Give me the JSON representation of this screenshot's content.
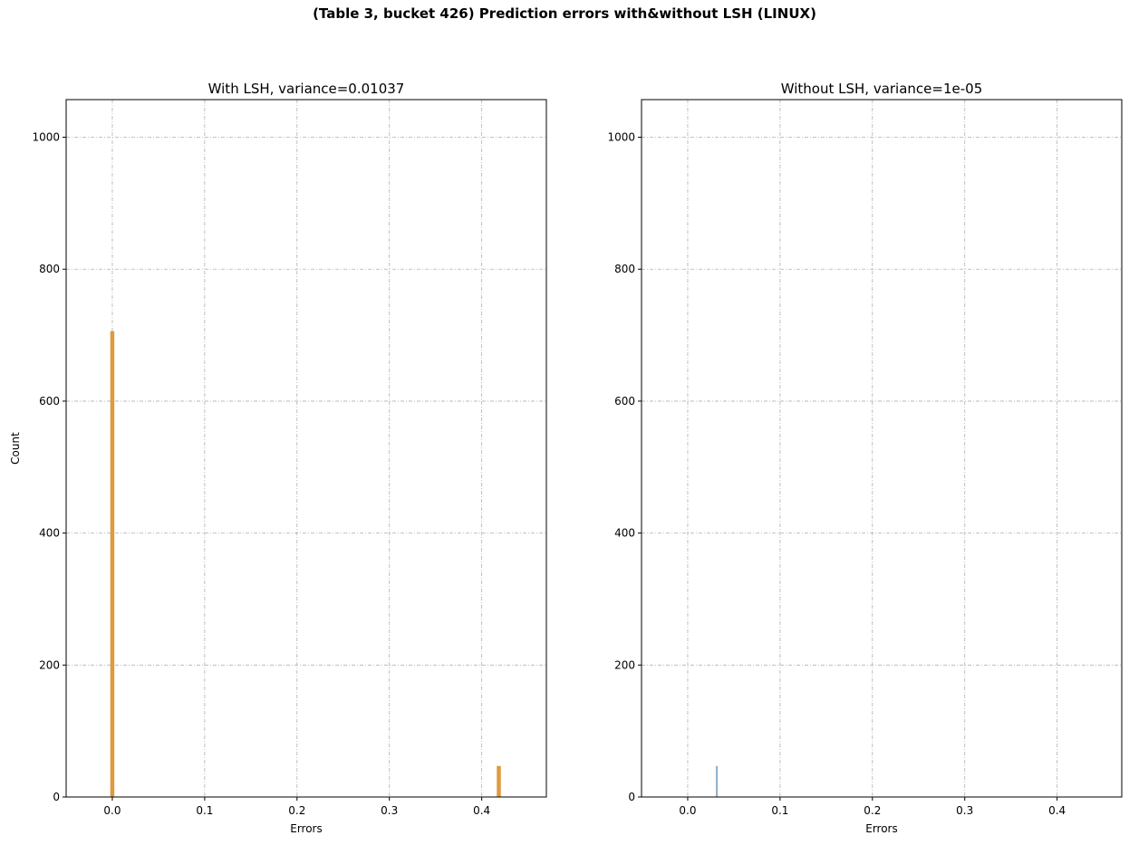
{
  "figure": {
    "suptitle": "(Table 3, bucket 426) Prediction errors with&without LSH (LINUX)"
  },
  "chart_data": [
    {
      "type": "bar",
      "title": "With LSH, variance=0.01037",
      "xlabel": "Errors",
      "ylabel": "Count",
      "xlim": [
        -0.05,
        0.47
      ],
      "ylim": [
        0,
        1057
      ],
      "xticks": [
        0.0,
        0.1,
        0.2,
        0.3,
        0.4
      ],
      "xtick_labels": [
        "0.0",
        "0.1",
        "0.2",
        "0.3",
        "0.4"
      ],
      "yticks": [
        0,
        200,
        400,
        600,
        800,
        1000
      ],
      "ytick_labels": [
        "0",
        "200",
        "400",
        "600",
        "800",
        "1000"
      ],
      "grid": true,
      "color": "#dd9a3e",
      "bars": [
        {
          "x": 0.0,
          "width": 0.0044,
          "height": 706
        },
        {
          "x": 0.4185,
          "width": 0.0044,
          "height": 47
        }
      ]
    },
    {
      "type": "bar",
      "title": "Without LSH, variance=1e-05",
      "xlabel": "Errors",
      "ylabel": "",
      "xlim": [
        -0.05,
        0.47
      ],
      "ylim": [
        0,
        1057
      ],
      "xticks": [
        0.0,
        0.1,
        0.2,
        0.3,
        0.4
      ],
      "xtick_labels": [
        "0.0",
        "0.1",
        "0.2",
        "0.3",
        "0.4"
      ],
      "yticks": [
        0,
        200,
        400,
        600,
        800,
        1000
      ],
      "ytick_labels": [
        "0",
        "200",
        "400",
        "600",
        "800",
        "1000"
      ],
      "grid": true,
      "color": "#4a7ea8",
      "bars": [
        {
          "x": 0.0315,
          "width": 0.0012,
          "height": 47
        }
      ]
    }
  ]
}
